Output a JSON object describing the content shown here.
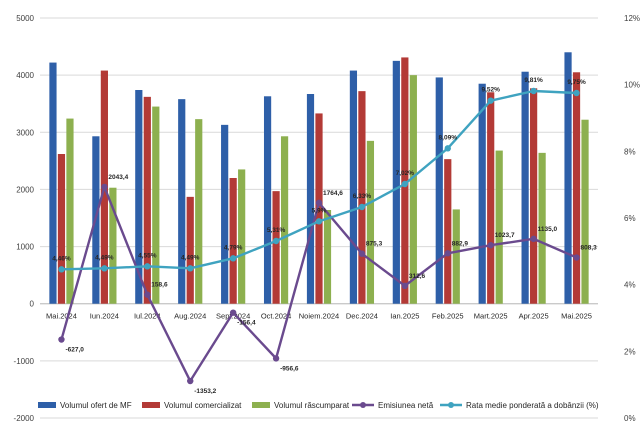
{
  "chart_data": {
    "type": "bar",
    "categories": [
      "Mai.2024",
      "Iun.2024",
      "Iul.2024",
      "Aug.2024",
      "Sept.2024",
      "Oct.2024",
      "Noiem.2024",
      "Dec.2024",
      "Ian.2025",
      "Feb.2025",
      "Mart.2025",
      "Apr.2025",
      "Mai.2025"
    ],
    "y_left": {
      "min": -2000,
      "max": 5000,
      "ticks": [
        -2000,
        -1000,
        0,
        1000,
        2000,
        3000,
        4000,
        5000
      ]
    },
    "y_right": {
      "min": 0,
      "max": 12,
      "ticks": [
        0,
        2,
        4,
        6,
        8,
        10,
        12
      ],
      "tick_labels": [
        "0%",
        "2%",
        "4%",
        "6%",
        "8%",
        "10%",
        "12%"
      ]
    },
    "grid": true,
    "legend": "bottom",
    "series": [
      {
        "name": "Volumul ofert de MF",
        "kind": "bar",
        "axis": "left",
        "color": "#2E5FA8",
        "values": [
          4220,
          2930,
          3740,
          3580,
          3130,
          3630,
          3670,
          4080,
          4250,
          3960,
          3850,
          4060,
          4400
        ]
      },
      {
        "name": "Volumul comercializat",
        "kind": "bar",
        "axis": "left",
        "color": "#B33A36",
        "values": [
          2620,
          4080,
          3620,
          1870,
          2200,
          1970,
          3330,
          3720,
          4310,
          2530,
          3700,
          3770,
          4050
        ]
      },
      {
        "name": "Volumul răscumparat",
        "kind": "bar",
        "axis": "left",
        "color": "#8DB04F",
        "values": [
          3240,
          2030,
          3450,
          3230,
          2350,
          2930,
          1640,
          2850,
          4000,
          1650,
          2680,
          2640,
          3220
        ]
      },
      {
        "name": "Emisiunea netă",
        "kind": "line",
        "axis": "left",
        "color": "#6A4A8E",
        "values": [
          -627.0,
          2043.4,
          158.6,
          -1353.2,
          -156.4,
          -956.6,
          1764.6,
          875.3,
          312.6,
          882.9,
          1023.7,
          1135.0,
          808.3
        ],
        "labels": [
          "-627,0",
          "2043,4",
          "158,6",
          "-1353,2",
          "-156,4",
          "-956,6",
          "1764,6",
          "875,3",
          "312,6",
          "882,9",
          "1023,7",
          "1135,0",
          "808,3"
        ]
      },
      {
        "name": "Rata medie ponderată a dobânzii (%)",
        "kind": "line",
        "axis": "right",
        "color": "#3FA3C0",
        "values": [
          4.46,
          4.49,
          4.55,
          4.49,
          4.79,
          5.31,
          5.9,
          6.33,
          7.02,
          8.09,
          9.52,
          9.81,
          9.75
        ],
        "labels": [
          "4,46%",
          "4,49%",
          "4,55%",
          "4,49%",
          "4,79%",
          "5,31%",
          "5,9%",
          "6,33%",
          "7,02%",
          "8,09%",
          "9,52%",
          "9,81%",
          "9,75%"
        ]
      }
    ]
  }
}
